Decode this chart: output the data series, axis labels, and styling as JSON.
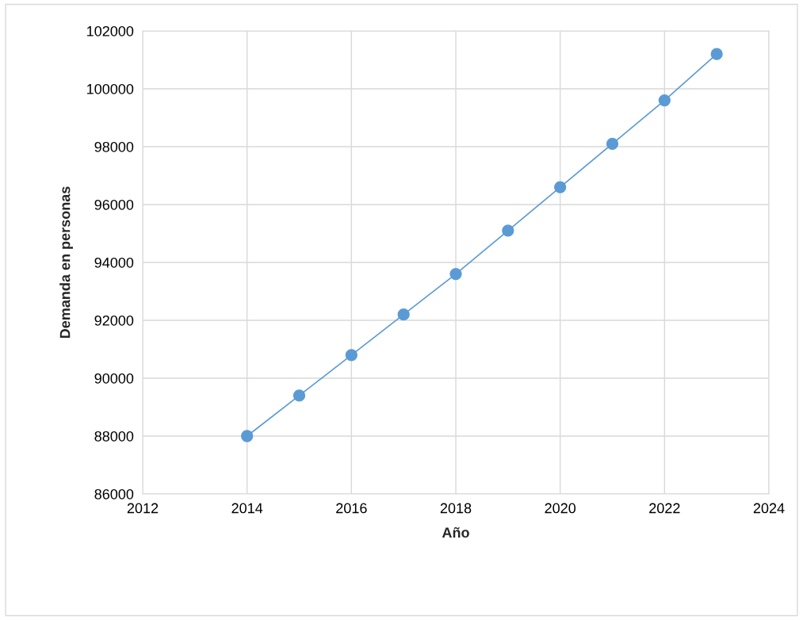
{
  "chart_data": {
    "type": "line",
    "xlabel": "Año",
    "ylabel": "Demanda en personas",
    "x": [
      2014,
      2015,
      2016,
      2017,
      2018,
      2019,
      2020,
      2021,
      2022,
      2023
    ],
    "series": [
      {
        "color": "#5b9bd5",
        "values": [
          88000,
          89400,
          90800,
          92200,
          93600,
          95100,
          96600,
          98100,
          99600,
          101200
        ]
      }
    ],
    "xlim": [
      2012,
      2024
    ],
    "xticks": [
      2012,
      2014,
      2016,
      2018,
      2020,
      2022,
      2024
    ],
    "ylim": [
      86000,
      102000
    ],
    "yticks": [
      86000,
      88000,
      90000,
      92000,
      94000,
      96000,
      98000,
      100000,
      102000
    ],
    "grid": true,
    "marker": "circle",
    "line_style": "solid"
  }
}
